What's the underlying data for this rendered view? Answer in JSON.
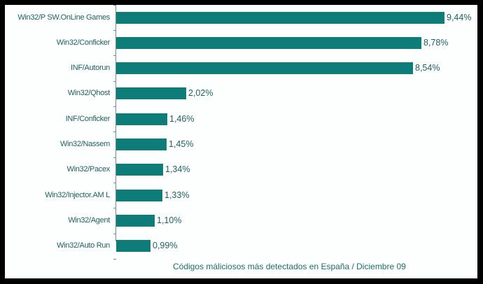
{
  "chart_data": {
    "type": "bar",
    "orientation": "horizontal",
    "title": "",
    "caption": "Códigos máliciosos más detectados en España / Diciembre 09",
    "xlabel": "",
    "ylabel": "",
    "unit": "%",
    "grid": false,
    "legend": null,
    "bar_color": "#0e7c78",
    "categories": [
      "Win32/P SW.OnLine Games",
      "Win32/Conficker",
      "INF/Autorun",
      "Win32/Qhost",
      "INF/Conficker",
      "Win32/Nassem",
      "Win32/Pacex",
      "Win32/Injector.AM L",
      "Win32/Agent",
      "Win32/Auto Run"
    ],
    "values": [
      9.44,
      8.78,
      8.54,
      2.02,
      1.46,
      1.45,
      1.34,
      1.33,
      1.1,
      0.99
    ],
    "value_labels": [
      "9,44%",
      "8,78%",
      "8,54%",
      "2,02%",
      "1,46%",
      "1,45%",
      "1,34%",
      "1,33%",
      "1,10%",
      "0,99%"
    ],
    "xlim": [
      0,
      10
    ]
  }
}
